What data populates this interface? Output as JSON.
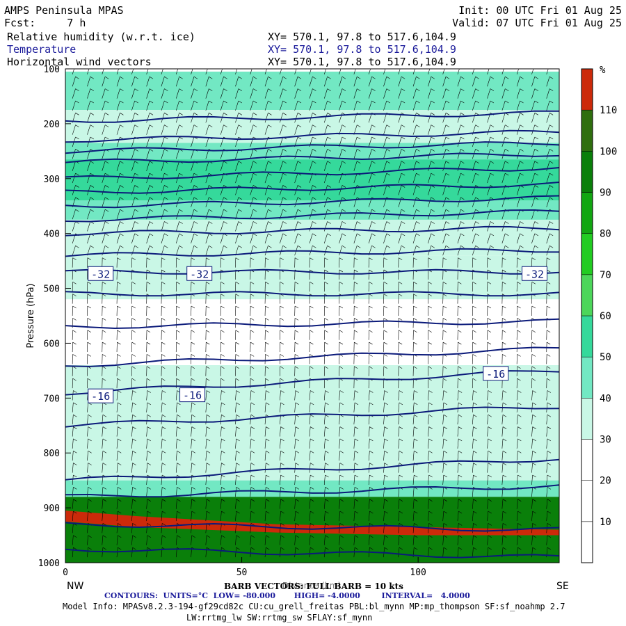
{
  "header": {
    "model": "AMPS Peninsula MPAS",
    "fcst": "Fcst:     7 h",
    "init": "Init: 00 UTC Fri 01 Aug 25",
    "valid": "Valid: 07 UTC Fri 01 Aug 25",
    "field1": "Relative humidity (w.r.t. ice)",
    "field2": "Temperature",
    "field3": "Horizontal wind vectors",
    "xy1": "XY= 570.1, 97.8 to 517.6,104.9",
    "xy2": "XY= 570.1, 97.8 to 517.6,104.9",
    "xy3": "XY= 570.1, 97.8 to 517.6,104.9"
  },
  "footer": {
    "barb": "BARB VECTORS: FULL BARB = 10 kts",
    "contours": "CONTOURS:  UNITS=°C  LOW= -80.000       HIGH= -4.0000        INTERVAL=   4.0000",
    "model_info": "Model Info: MPASv8.2.3-194-gf29cd82c CU:cu_grell_freitas PBL:bl_mynn MP:mp_thompson SF:sf_noahmp 2.7",
    "physics": "LW:rrtmg_lw SW:rrtmg_sw SFLAY:sf_mynn"
  },
  "colors": {
    "contour": "#0b1a7a",
    "rh_scale": [
      "#ffffff",
      "#ffffff",
      "#ffffff",
      "#c9f7e6",
      "#72e8c3",
      "#35d99b",
      "#4cd65a",
      "#22cc22",
      "#12a612",
      "#0a7f0a",
      "#2f6e0e",
      "#4a5c16",
      "#cc2a0a"
    ]
  },
  "chart_data": {
    "type": "heatmap",
    "title": "Relative humidity (w.r.t. ice) / Temperature / Horizontal wind vectors",
    "ylabel": "Pressure (hPa)",
    "xlabel": "Distance (km)",
    "x_ticks": [
      0,
      50,
      100
    ],
    "x_range": [
      0,
      140
    ],
    "y_ticks": [
      100,
      200,
      300,
      400,
      500,
      600,
      700,
      800,
      900,
      1000
    ],
    "y_range": [
      100,
      1000
    ],
    "left_label": "NW",
    "right_label": "SE",
    "colorbar": {
      "unit": "%",
      "levels": [
        10,
        20,
        30,
        40,
        50,
        60,
        70,
        80,
        90,
        100,
        110
      ]
    },
    "temperature_labels": [
      {
        "text": "-32",
        "x": 10,
        "p": 473
      },
      {
        "text": "-32",
        "x": 38,
        "p": 473
      },
      {
        "text": "-32",
        "x": 133,
        "p": 473
      },
      {
        "text": "-16",
        "x": 10,
        "p": 696
      },
      {
        "text": "-16",
        "x": 36,
        "p": 694
      },
      {
        "text": "-16",
        "x": 122,
        "p": 655
      }
    ],
    "temperature_contours_p_left": [
      195,
      230,
      250,
      270,
      300,
      325,
      350,
      375,
      400,
      440,
      470,
      510,
      570,
      640,
      690,
      750,
      850,
      880,
      930,
      975
    ],
    "temperature_contours_p_right": [
      180,
      215,
      235,
      255,
      280,
      310,
      335,
      360,
      390,
      430,
      470,
      510,
      560,
      610,
      650,
      715,
      810,
      860,
      940,
      990
    ],
    "rh_bands": [
      {
        "p_top": 105,
        "p_bottom": 175,
        "rh": 40
      },
      {
        "p_top": 175,
        "p_bottom": 235,
        "rh": 35
      },
      {
        "p_top": 235,
        "p_bottom": 265,
        "rh": 45
      },
      {
        "p_top": 265,
        "p_bottom": 340,
        "rh": 55
      },
      {
        "p_top": 340,
        "p_bottom": 375,
        "rh": 45
      },
      {
        "p_top": 375,
        "p_bottom": 440,
        "rh": 35
      },
      {
        "p_top": 440,
        "p_bottom": 520,
        "rh": 32
      },
      {
        "p_top": 520,
        "p_bottom": 640,
        "rh": 15
      },
      {
        "p_top": 640,
        "p_bottom": 850,
        "rh": 32
      },
      {
        "p_top": 850,
        "p_bottom": 880,
        "rh": 45
      },
      {
        "p_top": 880,
        "p_bottom": 1000,
        "rh": 90
      }
    ]
  }
}
